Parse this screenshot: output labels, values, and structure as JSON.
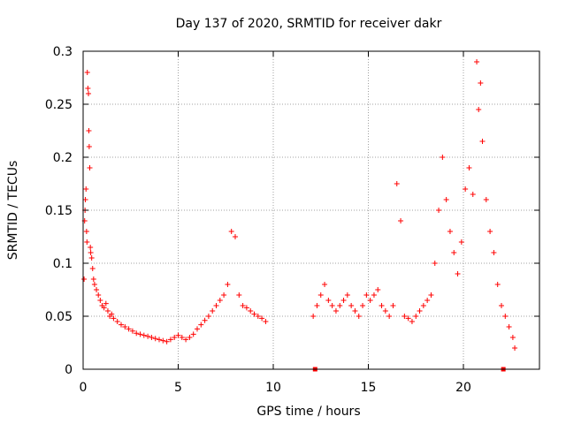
{
  "chart_data": {
    "type": "scatter",
    "title": "Day 137 of 2020, SRMTID for receiver dakr",
    "xlabel": "GPS time / hours",
    "ylabel": "SRMTID / TECUs",
    "xlim": [
      0,
      24
    ],
    "ylim": [
      0,
      0.3
    ],
    "xticks": [
      0,
      5,
      10,
      15,
      20
    ],
    "yticks": [
      0,
      0.05,
      0.1,
      0.15,
      0.2,
      0.25,
      0.3
    ],
    "xtick_labels": [
      "0",
      "5",
      "10",
      "15",
      "20"
    ],
    "ytick_labels": [
      "0",
      "0.05",
      "0.1",
      "0.15",
      "0.2",
      "0.25",
      "0.3"
    ],
    "grid": true,
    "marker": "+",
    "series_color": "#ff0000",
    "x_gap_markers": [
      12.2,
      22.1
    ],
    "points": [
      [
        0.05,
        0.085
      ],
      [
        0.08,
        0.14
      ],
      [
        0.1,
        0.15
      ],
      [
        0.12,
        0.16
      ],
      [
        0.15,
        0.17
      ],
      [
        0.18,
        0.13
      ],
      [
        0.2,
        0.12
      ],
      [
        0.22,
        0.28
      ],
      [
        0.25,
        0.265
      ],
      [
        0.28,
        0.26
      ],
      [
        0.3,
        0.225
      ],
      [
        0.32,
        0.21
      ],
      [
        0.35,
        0.19
      ],
      [
        0.38,
        0.115
      ],
      [
        0.4,
        0.11
      ],
      [
        0.45,
        0.105
      ],
      [
        0.5,
        0.095
      ],
      [
        0.55,
        0.085
      ],
      [
        0.6,
        0.08
      ],
      [
        0.7,
        0.075
      ],
      [
        0.8,
        0.07
      ],
      [
        0.9,
        0.065
      ],
      [
        1.0,
        0.06
      ],
      [
        1.1,
        0.058
      ],
      [
        1.2,
        0.062
      ],
      [
        1.3,
        0.055
      ],
      [
        1.4,
        0.05
      ],
      [
        1.5,
        0.052
      ],
      [
        1.6,
        0.048
      ],
      [
        1.8,
        0.045
      ],
      [
        2.0,
        0.042
      ],
      [
        2.2,
        0.04
      ],
      [
        2.4,
        0.038
      ],
      [
        2.6,
        0.036
      ],
      [
        2.8,
        0.034
      ],
      [
        3.0,
        0.033
      ],
      [
        3.2,
        0.032
      ],
      [
        3.4,
        0.031
      ],
      [
        3.6,
        0.03
      ],
      [
        3.8,
        0.029
      ],
      [
        4.0,
        0.028
      ],
      [
        4.2,
        0.027
      ],
      [
        4.4,
        0.026
      ],
      [
        4.6,
        0.028
      ],
      [
        4.8,
        0.03
      ],
      [
        5.0,
        0.032
      ],
      [
        5.2,
        0.03
      ],
      [
        5.4,
        0.028
      ],
      [
        5.6,
        0.03
      ],
      [
        5.8,
        0.033
      ],
      [
        6.0,
        0.038
      ],
      [
        6.2,
        0.042
      ],
      [
        6.4,
        0.046
      ],
      [
        6.6,
        0.05
      ],
      [
        6.8,
        0.055
      ],
      [
        7.0,
        0.06
      ],
      [
        7.2,
        0.065
      ],
      [
        7.4,
        0.07
      ],
      [
        7.6,
        0.08
      ],
      [
        7.8,
        0.13
      ],
      [
        8.0,
        0.125
      ],
      [
        8.2,
        0.07
      ],
      [
        8.4,
        0.06
      ],
      [
        8.6,
        0.058
      ],
      [
        8.8,
        0.055
      ],
      [
        9.0,
        0.052
      ],
      [
        9.2,
        0.05
      ],
      [
        9.4,
        0.048
      ],
      [
        9.6,
        0.045
      ],
      [
        12.1,
        0.05
      ],
      [
        12.3,
        0.06
      ],
      [
        12.5,
        0.07
      ],
      [
        12.7,
        0.08
      ],
      [
        12.9,
        0.065
      ],
      [
        13.1,
        0.06
      ],
      [
        13.3,
        0.055
      ],
      [
        13.5,
        0.06
      ],
      [
        13.7,
        0.065
      ],
      [
        13.9,
        0.07
      ],
      [
        14.1,
        0.06
      ],
      [
        14.3,
        0.055
      ],
      [
        14.5,
        0.05
      ],
      [
        14.7,
        0.06
      ],
      [
        14.9,
        0.07
      ],
      [
        15.1,
        0.065
      ],
      [
        15.3,
        0.07
      ],
      [
        15.5,
        0.075
      ],
      [
        15.7,
        0.06
      ],
      [
        15.9,
        0.055
      ],
      [
        16.1,
        0.05
      ],
      [
        16.3,
        0.06
      ],
      [
        16.5,
        0.175
      ],
      [
        16.7,
        0.14
      ],
      [
        16.9,
        0.05
      ],
      [
        17.1,
        0.048
      ],
      [
        17.3,
        0.045
      ],
      [
        17.5,
        0.05
      ],
      [
        17.7,
        0.055
      ],
      [
        17.9,
        0.06
      ],
      [
        18.1,
        0.065
      ],
      [
        18.3,
        0.07
      ],
      [
        18.5,
        0.1
      ],
      [
        18.7,
        0.15
      ],
      [
        18.9,
        0.2
      ],
      [
        19.1,
        0.16
      ],
      [
        19.3,
        0.13
      ],
      [
        19.5,
        0.11
      ],
      [
        19.7,
        0.09
      ],
      [
        19.9,
        0.12
      ],
      [
        20.1,
        0.17
      ],
      [
        20.3,
        0.19
      ],
      [
        20.5,
        0.165
      ],
      [
        20.7,
        0.29
      ],
      [
        20.8,
        0.245
      ],
      [
        20.9,
        0.27
      ],
      [
        21.0,
        0.215
      ],
      [
        21.2,
        0.16
      ],
      [
        21.4,
        0.13
      ],
      [
        21.6,
        0.11
      ],
      [
        21.8,
        0.08
      ],
      [
        22.0,
        0.06
      ],
      [
        22.2,
        0.05
      ],
      [
        22.4,
        0.04
      ],
      [
        22.6,
        0.03
      ],
      [
        22.7,
        0.02
      ]
    ]
  }
}
